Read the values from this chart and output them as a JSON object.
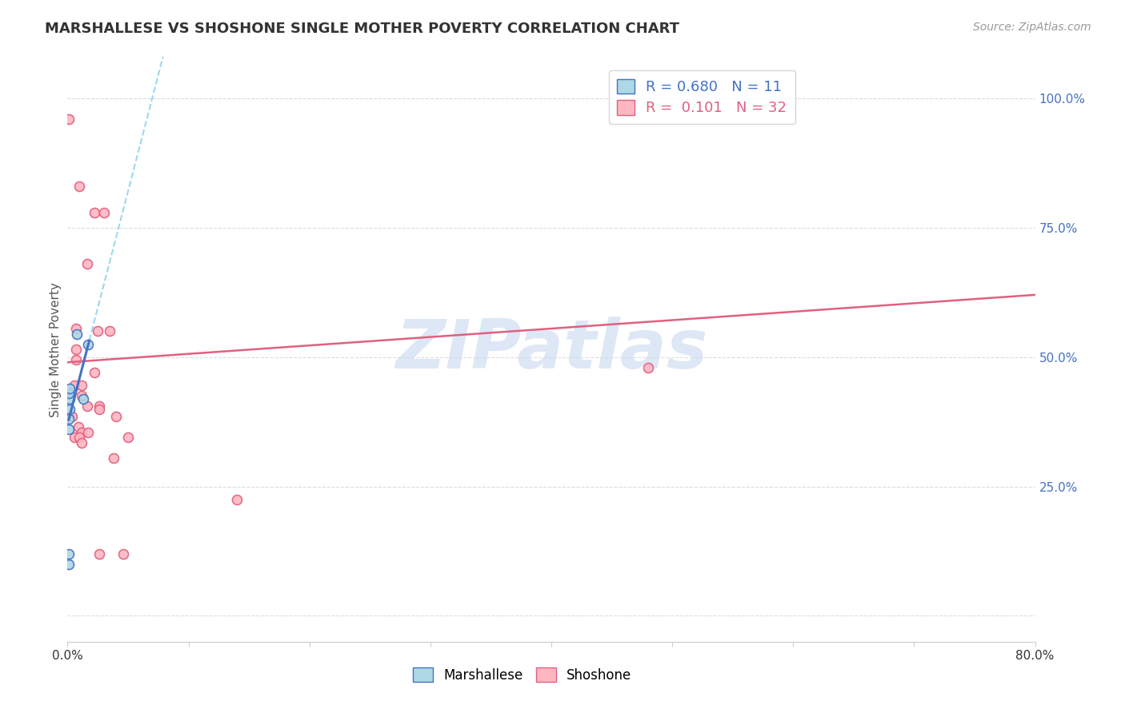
{
  "title": "MARSHALLESE VS SHOSHONE SINGLE MOTHER POVERTY CORRELATION CHART",
  "source": "Source: ZipAtlas.com",
  "ylabel": "Single Mother Poverty",
  "xlim": [
    0.0,
    0.8
  ],
  "ylim": [
    -0.05,
    1.08
  ],
  "marshallese_points": [
    [
      0.0008,
      0.1
    ],
    [
      0.0008,
      0.12
    ],
    [
      0.0015,
      0.4
    ],
    [
      0.002,
      0.42
    ],
    [
      0.0012,
      0.43
    ],
    [
      0.0018,
      0.44
    ],
    [
      0.001,
      0.38
    ],
    [
      0.001,
      0.36
    ],
    [
      0.0075,
      0.545
    ],
    [
      0.013,
      0.42
    ],
    [
      0.017,
      0.525
    ]
  ],
  "shoshone_points": [
    [
      0.0008,
      0.96
    ],
    [
      0.01,
      0.83
    ],
    [
      0.022,
      0.78
    ],
    [
      0.03,
      0.78
    ],
    [
      0.016,
      0.68
    ],
    [
      0.025,
      0.55
    ],
    [
      0.035,
      0.55
    ],
    [
      0.022,
      0.47
    ],
    [
      0.007,
      0.555
    ],
    [
      0.007,
      0.515
    ],
    [
      0.007,
      0.495
    ],
    [
      0.006,
      0.445
    ],
    [
      0.012,
      0.445
    ],
    [
      0.012,
      0.425
    ],
    [
      0.016,
      0.405
    ],
    [
      0.026,
      0.405
    ],
    [
      0.0008,
      0.385
    ],
    [
      0.0035,
      0.385
    ],
    [
      0.009,
      0.365
    ],
    [
      0.012,
      0.355
    ],
    [
      0.017,
      0.355
    ],
    [
      0.006,
      0.345
    ],
    [
      0.01,
      0.345
    ],
    [
      0.012,
      0.335
    ],
    [
      0.05,
      0.345
    ],
    [
      0.038,
      0.305
    ],
    [
      0.026,
      0.4
    ],
    [
      0.04,
      0.385
    ],
    [
      0.14,
      0.225
    ],
    [
      0.026,
      0.12
    ],
    [
      0.046,
      0.12
    ],
    [
      0.48,
      0.48
    ]
  ],
  "marshallese_color": "#ADD8E6",
  "marshallese_edge_color": "#4472C4",
  "shoshone_color": "#FFB6C1",
  "shoshone_edge_color": "#E06080",
  "marker_size": 75,
  "blue_line_color": "#4472C4",
  "pink_line_color": "#E06080",
  "dashed_line_color": "#87CEEB",
  "R_marshallese": 0.68,
  "N_marshallese": 11,
  "R_shoshone": 0.101,
  "N_shoshone": 32,
  "watermark": "ZIPatlas",
  "watermark_color": "#C8D8F0",
  "background_color": "#FFFFFF",
  "grid_color": "#DDDDDD"
}
